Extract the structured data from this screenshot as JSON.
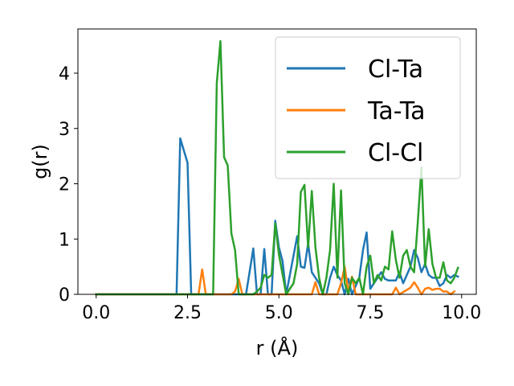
{
  "chart_data": {
    "type": "line",
    "xlabel": "r (Å)",
    "ylabel": "g(r)",
    "xlim": [
      -0.5,
      10.4
    ],
    "ylim": [
      0,
      4.8
    ],
    "xticks": [
      0.0,
      2.5,
      5.0,
      7.5,
      10.0
    ],
    "xtick_labels": [
      "0.0",
      "2.5",
      "5.0",
      "7.5",
      "10.0"
    ],
    "yticks": [
      0,
      1,
      2,
      3,
      4
    ],
    "ytick_labels": [
      "0",
      "1",
      "2",
      "3",
      "4"
    ],
    "grid": false,
    "legend_position": "top-right",
    "series": [
      {
        "name": "Cl-Ta",
        "color": "#1f77b4",
        "x": [
          0.0,
          2.2,
          2.3,
          2.5,
          2.6,
          3.0,
          4.1,
          4.3,
          4.4,
          4.5,
          4.6,
          4.7,
          4.8,
          4.9,
          5.0,
          5.1,
          5.2,
          5.5,
          5.6,
          5.7,
          5.8,
          5.9,
          6.0,
          6.1,
          6.2,
          6.3,
          6.4,
          6.5,
          6.6,
          6.7,
          6.8,
          6.9,
          7.0,
          7.2,
          7.3,
          7.4,
          7.5,
          7.6,
          7.7,
          7.8,
          7.9,
          8.0,
          8.1,
          8.2,
          8.3,
          8.4,
          8.5,
          8.6,
          8.7,
          8.8,
          8.9,
          9.0,
          9.1,
          9.2,
          9.3,
          9.4,
          9.5,
          9.6,
          9.7,
          9.8,
          9.9
        ],
        "y": [
          0,
          0,
          2.82,
          2.38,
          0,
          0,
          0,
          0.83,
          0,
          0.0,
          0.82,
          0,
          0,
          1.33,
          0.85,
          0.6,
          0,
          1.05,
          0.5,
          0.48,
          0.92,
          0.4,
          0.3,
          0.2,
          0,
          0,
          0.3,
          0.5,
          0.35,
          0.25,
          0,
          0.28,
          0,
          0.3,
          0.8,
          1.12,
          0.1,
          0.2,
          0.3,
          0.4,
          0.28,
          0.25,
          0.25,
          0.25,
          0.4,
          0.2,
          0.35,
          0.5,
          0.8,
          0.66,
          0.4,
          0.55,
          0.35,
          0.3,
          0.3,
          0.15,
          0.2,
          0.35,
          0.3,
          0.35,
          0.32
        ]
      },
      {
        "name": "Ta-Ta",
        "color": "#ff7f0e",
        "x": [
          0.0,
          2.8,
          2.9,
          3.0,
          3.7,
          3.8,
          3.9,
          4.0,
          5.9,
          6.0,
          6.1,
          6.6,
          6.7,
          6.8,
          6.9,
          7.0,
          7.1,
          8.1,
          8.2,
          8.3,
          8.6,
          8.7,
          8.8,
          8.9,
          9.0,
          9.1,
          9.2,
          9.3,
          9.4,
          9.5,
          9.6,
          9.7,
          9.8
        ],
        "y": [
          0,
          0,
          0.45,
          0,
          0,
          0.05,
          0.28,
          0,
          0,
          0.22,
          0,
          0,
          0.2,
          0.5,
          0.05,
          0.32,
          0,
          0,
          0.12,
          0,
          0.12,
          0.22,
          0.12,
          0,
          0.1,
          0.12,
          0.08,
          0.1,
          0.1,
          0.05,
          0.05,
          0,
          0.05
        ]
      },
      {
        "name": "Cl-Cl",
        "color": "#2ca02c",
        "x": [
          0.0,
          3.2,
          3.3,
          3.4,
          3.5,
          3.6,
          3.7,
          3.8,
          3.9,
          4.0,
          4.3,
          4.4,
          4.5,
          4.6,
          4.7,
          4.8,
          4.9,
          5.0,
          5.1,
          5.2,
          5.4,
          5.5,
          5.6,
          5.7,
          5.8,
          5.9,
          6.0,
          6.1,
          6.2,
          6.3,
          6.4,
          6.5,
          6.6,
          6.7,
          6.8,
          6.9,
          7.0,
          7.1,
          7.2,
          7.3,
          7.4,
          7.5,
          7.6,
          7.7,
          7.8,
          7.9,
          8.0,
          8.1,
          8.2,
          8.3,
          8.4,
          8.5,
          8.6,
          8.7,
          8.8,
          8.9,
          9.0,
          9.1,
          9.2,
          9.3,
          9.4,
          9.5,
          9.6,
          9.7,
          9.8,
          9.9
        ],
        "y": [
          0,
          0,
          3.82,
          4.58,
          2.48,
          2.33,
          1.1,
          0.8,
          0,
          0,
          0,
          0.05,
          0.12,
          0.35,
          0.3,
          0.35,
          1.28,
          0.72,
          0.36,
          0.0,
          0.2,
          0.55,
          1.85,
          1.98,
          0.85,
          1.87,
          0.85,
          0.3,
          0,
          0.3,
          0.8,
          2.0,
          0.3,
          1.88,
          0.2,
          0,
          0.3,
          0.2,
          0.3,
          0,
          0.5,
          0.7,
          0.2,
          0.35,
          0.25,
          0.5,
          0.45,
          1.14,
          0.62,
          0.3,
          0.7,
          0.8,
          0.5,
          0.4,
          1.3,
          2.3,
          0.5,
          1.18,
          0.55,
          0.3,
          0.3,
          0.58,
          0.25,
          0.2,
          0.3,
          0.48
        ]
      }
    ]
  }
}
